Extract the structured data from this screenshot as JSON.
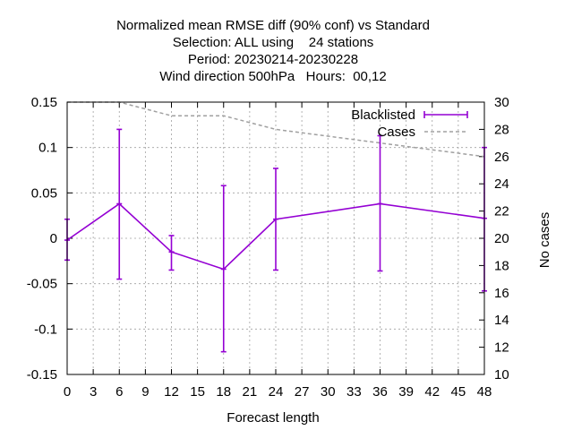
{
  "chart_data": {
    "type": "line",
    "title_lines": [
      "Normalized mean RMSE diff (90% conf) vs Standard",
      "Selection: ALL using    24 stations",
      "Period: 20230214-20230228",
      "Wind direction 500hPa   Hours:  00,12"
    ],
    "xlabel": "Forecast length",
    "ylabel": "",
    "y2label": "No cases",
    "xlim": [
      0,
      48
    ],
    "ylim": [
      -0.15,
      0.15
    ],
    "y2lim": [
      10,
      30
    ],
    "grid": true,
    "legend_position": "top-right",
    "x_ticks": [
      "0",
      "3",
      "6",
      "9",
      "12",
      "15",
      "18",
      "21",
      "24",
      "27",
      "30",
      "33",
      "36",
      "39",
      "42",
      "45",
      "48"
    ],
    "y_ticks": [
      "-0.15",
      "-0.1",
      "-0.05",
      "0",
      "0.05",
      "0.1",
      "0.15"
    ],
    "y2_ticks": [
      "10",
      "12",
      "14",
      "16",
      "18",
      "20",
      "22",
      "24",
      "26",
      "28",
      "30"
    ],
    "colors": {
      "blacklisted": "#9400d3",
      "cases": "#a0a0a0",
      "grid": "#a0a0a0"
    },
    "series": [
      {
        "name": "Blacklisted",
        "axis": "y",
        "x": [
          0,
          6,
          12,
          18,
          24,
          36,
          48
        ],
        "y": [
          -0.002,
          0.038,
          -0.015,
          -0.034,
          0.021,
          0.038,
          0.022
        ],
        "err_low": [
          -0.024,
          -0.045,
          -0.035,
          -0.125,
          -0.035,
          -0.036,
          -0.058
        ],
        "err_high": [
          0.021,
          0.12,
          0.003,
          0.058,
          0.077,
          0.113,
          0.1
        ]
      },
      {
        "name": "Cases",
        "axis": "y2",
        "x": [
          0,
          6,
          12,
          18,
          24,
          30,
          36,
          42,
          48
        ],
        "y": [
          30,
          30,
          29,
          29,
          28,
          27.5,
          27,
          26.5,
          26
        ]
      }
    ]
  }
}
